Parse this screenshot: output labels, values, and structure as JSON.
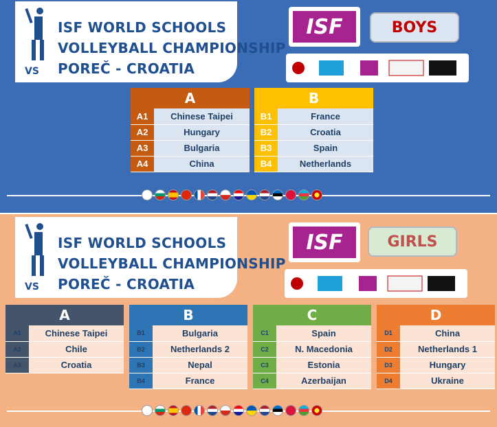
{
  "event": {
    "title_line1": "ISF WORLD SCHOOLS",
    "title_line2": "VOLLEYBALL CHAMPIONSHIP",
    "title_line3": "POREČ - CROATIA"
  },
  "logo": {
    "text": "ISF"
  },
  "boys": {
    "label": "BOYS",
    "groups": [
      {
        "name": "A",
        "color": "#c55a11",
        "teams": [
          {
            "code": "A1",
            "team": "Chinese Taipei"
          },
          {
            "code": "A2",
            "team": "Hungary"
          },
          {
            "code": "A3",
            "team": "Bulgaria"
          },
          {
            "code": "A4",
            "team": "China"
          }
        ]
      },
      {
        "name": "B",
        "color": "#ffc000",
        "teams": [
          {
            "code": "B1",
            "team": "France"
          },
          {
            "code": "B2",
            "team": "Croatia"
          },
          {
            "code": "B3",
            "team": "Spain"
          },
          {
            "code": "B4",
            "team": "Netherlands"
          }
        ]
      }
    ]
  },
  "girls": {
    "label": "GIRLS",
    "groups": [
      {
        "name": "A",
        "color": "#44546a",
        "teams": [
          {
            "code": "A1",
            "team": "Chinese Taipei"
          },
          {
            "code": "A2",
            "team": "Chile"
          },
          {
            "code": "A3",
            "team": "Croatia"
          }
        ]
      },
      {
        "name": "B",
        "color": "#2e75b6",
        "teams": [
          {
            "code": "B1",
            "team": "Bulgaria"
          },
          {
            "code": "B2",
            "team": "Netherlands 2"
          },
          {
            "code": "B3",
            "team": "Nepal"
          },
          {
            "code": "B4",
            "team": "France"
          }
        ]
      },
      {
        "name": "C",
        "color": "#70ad47",
        "teams": [
          {
            "code": "C1",
            "team": "Spain"
          },
          {
            "code": "C2",
            "team": "N. Macedonia"
          },
          {
            "code": "C3",
            "team": "Estonia"
          },
          {
            "code": "C4",
            "team": "Azerbaijan"
          }
        ]
      },
      {
        "name": "D",
        "color": "#ed7d31",
        "teams": [
          {
            "code": "D1",
            "team": "China"
          },
          {
            "code": "D2",
            "team": "Netherlands 1"
          },
          {
            "code": "D3",
            "team": "Hungary"
          },
          {
            "code": "D4",
            "team": "Ukraine"
          }
        ]
      }
    ]
  },
  "flags": [
    "chinese-taipei-flag",
    "bulgaria-flag",
    "spain-flag",
    "china-flag",
    "france-flag",
    "netherlands-flag",
    "chile-flag",
    "croatia-flag",
    "ukraine-flag",
    "netherlands-flag",
    "estonia-flag",
    "nepal-flag",
    "azerbaijan-flag",
    "north-macedonia-flag"
  ]
}
